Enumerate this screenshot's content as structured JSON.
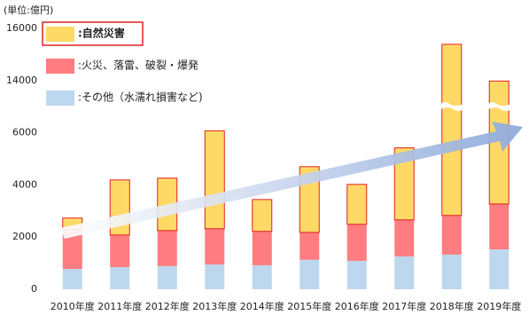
{
  "chart_data": {
    "type": "stacked-bar",
    "unit_label": "(単位:億円)",
    "categories": [
      "2010年度",
      "2011年度",
      "2012年度",
      "2013年度",
      "2014年度",
      "2015年度",
      "2016年度",
      "2017年度",
      "2018年度",
      "2019年度"
    ],
    "series": [
      {
        "name": ":その他（水濡れ損害など)",
        "color": "#bdd7ee",
        "values": [
          780,
          850,
          890,
          950,
          920,
          1130,
          1090,
          1260,
          1330,
          1530
        ]
      },
      {
        "name": ":火災、落雷、破裂・爆発",
        "color": "#ff7c80",
        "values": [
          1520,
          1230,
          1360,
          1370,
          1300,
          1050,
          1400,
          1400,
          1500,
          1740
        ]
      },
      {
        "name": ":自然災害",
        "color": "#ffd966",
        "values": [
          430,
          2110,
          2010,
          3980,
          1220,
          2520,
          1530,
          2760,
          12560,
          10660
        ]
      }
    ],
    "ylim": [
      0,
      16000
    ],
    "yticks": [
      0,
      2000,
      4000,
      6000,
      14000,
      16000
    ],
    "axis_break": [
      6000,
      14000
    ]
  }
}
